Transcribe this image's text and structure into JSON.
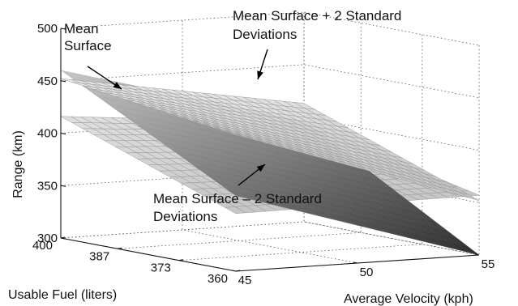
{
  "chart_data": {
    "type": "surface3d",
    "title": "",
    "zlabel": "Range (km)",
    "xlabel": "Average Velocity (kph)",
    "ylabel": "Usable Fuel (liters)",
    "z_ticks": [
      "300",
      "350",
      "400",
      "450",
      "500"
    ],
    "x_ticks": [
      "45",
      "50",
      "55"
    ],
    "y_ticks": [
      "400",
      "387",
      "373",
      "360"
    ],
    "zlim": [
      300,
      500
    ],
    "xlim": [
      45,
      55
    ],
    "ylim": [
      360,
      400
    ],
    "grid": true,
    "series": [
      {
        "name": "Mean Surface",
        "style": "shaded",
        "corners_km": {
          "fuel400_v45": 460,
          "fuel400_v55": 396,
          "fuel360_v45": 372,
          "fuel360_v55": 300
        }
      },
      {
        "name": "Mean Surface + 2 Standard Deviations",
        "style": "mesh",
        "corners_km": {
          "fuel400_v45": 452,
          "fuel400_v55": 413,
          "fuel360_v45": 430,
          "fuel360_v55": 352
        }
      },
      {
        "name": "Mean Surface – 2 Standard Deviations",
        "style": "mesh",
        "corners_km": {
          "fuel400_v45": 416,
          "fuel400_v55": 395,
          "fuel360_v45": 355,
          "fuel360_v55": 357
        }
      }
    ],
    "annotations": [
      {
        "lines": [
          "Mean",
          "Surface"
        ],
        "target": "Mean Surface"
      },
      {
        "lines": [
          "Mean Surface + 2 Standard",
          "Deviations"
        ],
        "target": "Mean Surface + 2 Standard Deviations"
      },
      {
        "lines": [
          "Mean Surface – 2 Standard",
          "Deviations"
        ],
        "target": "Mean Surface – 2 Standard Deviations"
      }
    ]
  },
  "colors": {
    "mesh_light": "#9a9a9a",
    "mesh_dark": "#5a5a5a",
    "shaded_light": "#cfcfcf",
    "shaded_dark": "#2e2e2e",
    "axis": "#111111"
  }
}
